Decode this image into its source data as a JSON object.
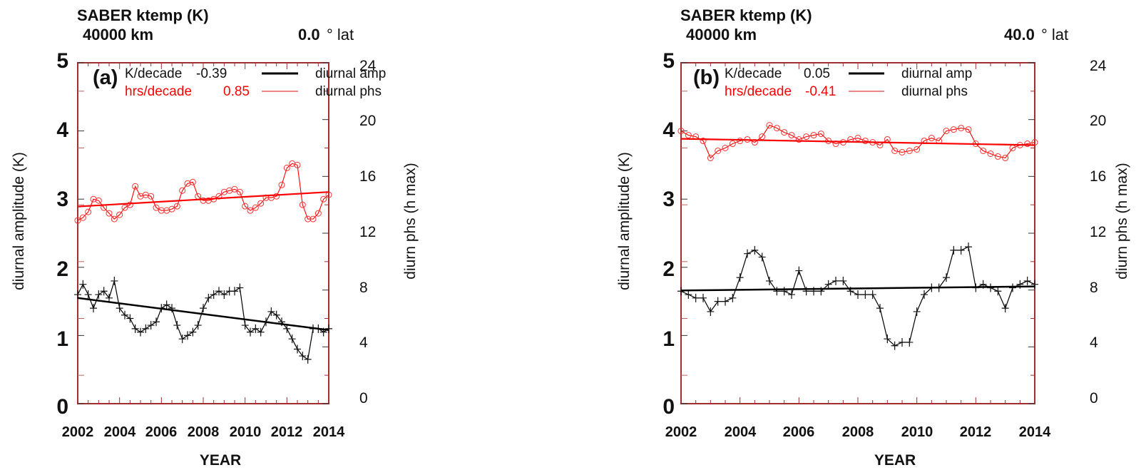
{
  "chart_data": [
    {
      "type": "line",
      "panel_label": "(a)",
      "title": "SABER ktemp (K)",
      "subtitle_left": "40000 km",
      "subtitle_right_value": "0.0",
      "subtitle_right_unit": "° lat",
      "xlabel": "YEAR",
      "ylabel": "diurnal amplitude (K)",
      "y2label": "diurn phs (h max)",
      "xlim": [
        2002,
        2014
      ],
      "ylim": [
        0,
        5
      ],
      "y2lim": [
        0,
        24
      ],
      "x_ticks": [
        "2002",
        "2004",
        "2006",
        "2008",
        "2010",
        "2012",
        "2014"
      ],
      "y_ticks": [
        "0",
        "1",
        "2",
        "3",
        "4",
        "5"
      ],
      "y2_ticks": [
        "0",
        "4",
        "8",
        "12",
        "16",
        "20",
        "24"
      ],
      "grid": false,
      "legend": [
        {
          "label_left": "K/decade",
          "value": "-0.39",
          "label_right": "diurnal amp",
          "color": "#000000"
        },
        {
          "label_left": "hrs/decade",
          "value": "0.85",
          "label_right": "diurnal phs",
          "color": "#ff0000"
        }
      ],
      "series": [
        {
          "name": "diurnal amp",
          "axis": "left",
          "color": "#000000",
          "marker": "plus",
          "x": [
            2002.0,
            2002.25,
            2002.5,
            2002.75,
            2003.0,
            2003.25,
            2003.5,
            2003.75,
            2004.0,
            2004.25,
            2004.5,
            2004.75,
            2005.0,
            2005.25,
            2005.5,
            2005.75,
            2006.0,
            2006.25,
            2006.5,
            2006.75,
            2007.0,
            2007.25,
            2007.5,
            2007.75,
            2008.0,
            2008.25,
            2008.5,
            2008.75,
            2009.0,
            2009.25,
            2009.5,
            2009.75,
            2010.0,
            2010.25,
            2010.5,
            2010.75,
            2011.0,
            2011.25,
            2011.5,
            2011.75,
            2012.0,
            2012.25,
            2012.5,
            2012.75,
            2013.0,
            2013.25,
            2013.5,
            2013.75,
            2014.0
          ],
          "values": [
            1.6,
            1.75,
            1.6,
            1.4,
            1.6,
            1.65,
            1.55,
            1.8,
            1.4,
            1.3,
            1.25,
            1.1,
            1.05,
            1.1,
            1.15,
            1.2,
            1.4,
            1.45,
            1.4,
            1.15,
            0.95,
            1.0,
            1.05,
            1.15,
            1.4,
            1.55,
            1.6,
            1.65,
            1.6,
            1.65,
            1.65,
            1.7,
            1.15,
            1.05,
            1.1,
            1.05,
            1.2,
            1.35,
            1.3,
            1.2,
            1.1,
            0.95,
            0.8,
            0.7,
            0.65,
            1.1,
            1.1,
            1.05,
            1.1
          ]
        },
        {
          "name": "diurnal amp trend",
          "axis": "left",
          "color": "#000000",
          "marker": "none",
          "x": [
            2002,
            2014
          ],
          "values": [
            1.55,
            1.08
          ]
        },
        {
          "name": "diurnal phs",
          "axis": "right",
          "color": "#ff0000",
          "marker": "diamond",
          "x": [
            2002.0,
            2002.25,
            2002.5,
            2002.75,
            2003.0,
            2003.25,
            2003.5,
            2003.75,
            2004.0,
            2004.25,
            2004.5,
            2004.75,
            2005.0,
            2005.25,
            2005.5,
            2005.75,
            2006.0,
            2006.25,
            2006.5,
            2006.75,
            2007.0,
            2007.25,
            2007.5,
            2007.75,
            2008.0,
            2008.25,
            2008.5,
            2008.75,
            2009.0,
            2009.25,
            2009.5,
            2009.75,
            2010.0,
            2010.25,
            2010.5,
            2010.75,
            2011.0,
            2011.25,
            2011.5,
            2011.75,
            2012.0,
            2012.25,
            2012.5,
            2012.75,
            2013.0,
            2013.25,
            2013.5,
            2013.75,
            2014.0
          ],
          "values": [
            12.9,
            13.1,
            13.5,
            14.4,
            14.3,
            13.8,
            13.4,
            13.0,
            13.3,
            13.8,
            14.0,
            15.3,
            14.6,
            14.7,
            14.6,
            13.8,
            13.6,
            13.6,
            13.7,
            13.9,
            15.0,
            15.5,
            15.6,
            14.6,
            14.3,
            14.3,
            14.4,
            14.6,
            14.9,
            15.0,
            15.1,
            14.9,
            13.9,
            13.6,
            13.8,
            14.1,
            14.5,
            14.5,
            14.6,
            15.4,
            16.6,
            16.9,
            16.8,
            14.0,
            13.0,
            13.0,
            13.4,
            14.4,
            14.7
          ]
        },
        {
          "name": "diurnal phs trend",
          "axis": "right",
          "color": "#ff0000",
          "marker": "none",
          "x": [
            2002,
            2014
          ],
          "values": [
            13.88,
            14.9
          ]
        }
      ]
    },
    {
      "type": "line",
      "panel_label": "(b)",
      "title": "SABER ktemp (K)",
      "subtitle_left": "40000 km",
      "subtitle_right_value": "40.0",
      "subtitle_right_unit": "° lat",
      "xlabel": "YEAR",
      "ylabel": "diurnal amplitude (K)",
      "y2label": "diurn phs (h max)",
      "xlim": [
        2002,
        2014
      ],
      "ylim": [
        0,
        5
      ],
      "y2lim": [
        0,
        24
      ],
      "x_ticks": [
        "2002",
        "2004",
        "2006",
        "2008",
        "2010",
        "2012",
        "2014"
      ],
      "y_ticks": [
        "0",
        "1",
        "2",
        "3",
        "4",
        "5"
      ],
      "y2_ticks": [
        "0",
        "4",
        "8",
        "12",
        "16",
        "20",
        "24"
      ],
      "grid": false,
      "legend": [
        {
          "label_left": "K/decade",
          "value": "0.05",
          "label_right": "diurnal amp",
          "color": "#000000"
        },
        {
          "label_left": "hrs/decade",
          "value": "-0.41",
          "label_right": "diurnal phs",
          "color": "#ff0000"
        }
      ],
      "series": [
        {
          "name": "diurnal amp",
          "axis": "left",
          "color": "#000000",
          "marker": "plus",
          "x": [
            2002.0,
            2002.25,
            2002.5,
            2002.75,
            2003.0,
            2003.25,
            2003.5,
            2003.75,
            2004.0,
            2004.25,
            2004.5,
            2004.75,
            2005.0,
            2005.25,
            2005.5,
            2005.75,
            2006.0,
            2006.25,
            2006.5,
            2006.75,
            2007.0,
            2007.25,
            2007.5,
            2007.75,
            2008.0,
            2008.25,
            2008.5,
            2008.75,
            2009.0,
            2009.25,
            2009.5,
            2009.75,
            2010.0,
            2010.25,
            2010.5,
            2010.75,
            2011.0,
            2011.25,
            2011.5,
            2011.75,
            2012.0,
            2012.25,
            2012.5,
            2012.75,
            2013.0,
            2013.25,
            2013.5,
            2013.75,
            2014.0
          ],
          "values": [
            1.65,
            1.6,
            1.55,
            1.55,
            1.35,
            1.5,
            1.5,
            1.55,
            1.85,
            2.2,
            2.25,
            2.15,
            1.8,
            1.65,
            1.65,
            1.6,
            1.95,
            1.65,
            1.65,
            1.65,
            1.75,
            1.8,
            1.8,
            1.65,
            1.6,
            1.6,
            1.6,
            1.4,
            0.95,
            0.85,
            0.9,
            0.9,
            1.35,
            1.6,
            1.7,
            1.7,
            1.85,
            2.25,
            2.25,
            2.3,
            1.7,
            1.75,
            1.7,
            1.65,
            1.4,
            1.7,
            1.75,
            1.8,
            1.75
          ]
        },
        {
          "name": "diurnal amp trend",
          "axis": "left",
          "color": "#000000",
          "marker": "none",
          "x": [
            2002,
            2014
          ],
          "values": [
            1.66,
            1.72
          ]
        },
        {
          "name": "diurnal phs",
          "axis": "right",
          "color": "#ff0000",
          "marker": "diamond",
          "x": [
            2002.0,
            2002.25,
            2002.5,
            2002.75,
            2003.0,
            2003.25,
            2003.5,
            2003.75,
            2004.0,
            2004.25,
            2004.5,
            2004.75,
            2005.0,
            2005.25,
            2005.5,
            2005.75,
            2006.0,
            2006.25,
            2006.5,
            2006.75,
            2007.0,
            2007.25,
            2007.5,
            2007.75,
            2008.0,
            2008.25,
            2008.5,
            2008.75,
            2009.0,
            2009.25,
            2009.5,
            2009.75,
            2010.0,
            2010.25,
            2010.5,
            2010.75,
            2011.0,
            2011.25,
            2011.5,
            2011.75,
            2012.0,
            2012.25,
            2012.5,
            2012.75,
            2013.0,
            2013.25,
            2013.5,
            2013.75,
            2014.0
          ],
          "values": [
            19.2,
            18.9,
            18.8,
            18.5,
            17.3,
            17.8,
            18.0,
            18.3,
            18.5,
            18.6,
            18.4,
            18.8,
            19.6,
            19.4,
            19.1,
            18.9,
            18.6,
            18.8,
            18.9,
            19.0,
            18.5,
            18.3,
            18.4,
            18.6,
            18.7,
            18.5,
            18.4,
            18.2,
            18.6,
            17.8,
            17.7,
            17.8,
            17.9,
            18.5,
            18.7,
            18.5,
            19.2,
            19.3,
            19.4,
            19.3,
            18.3,
            17.8,
            17.6,
            17.4,
            17.3,
            18.0,
            18.2,
            18.3,
            18.4
          ]
        },
        {
          "name": "diurnal phs trend",
          "axis": "right",
          "color": "#ff0000",
          "marker": "none",
          "x": [
            2002,
            2014
          ],
          "values": [
            18.65,
            18.2
          ]
        }
      ]
    }
  ]
}
